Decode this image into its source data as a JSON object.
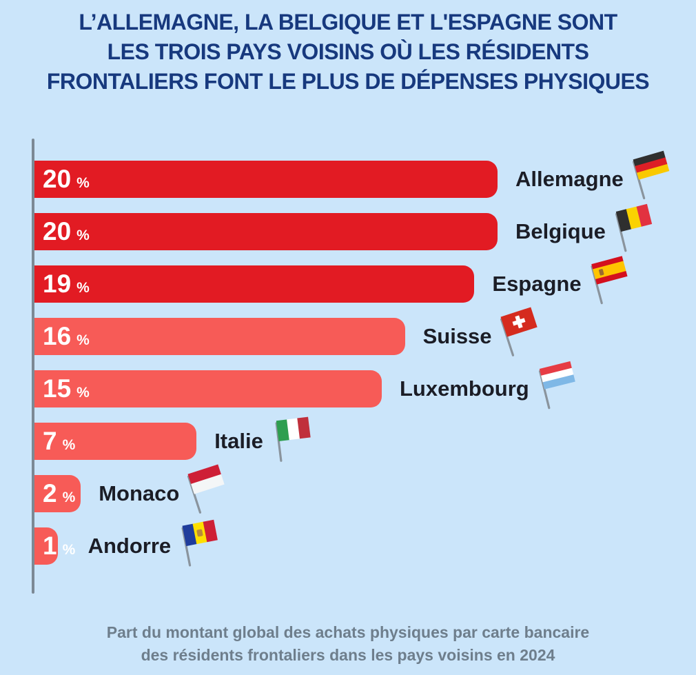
{
  "title": {
    "lines": [
      "L’ALLEMAGNE, LA BELGIQUE ET L'ESPAGNE SONT",
      "LES TROIS PAYS VOISINS OÙ LES RÉSIDENTS",
      "FRONTALIERS FONT LE PLUS DE DÉPENSES PHYSIQUES"
    ]
  },
  "footer": {
    "lines": [
      "Part du montant global des achats physiques par carte bancaire",
      "des résidents frontaliers dans les pays voisins en 2024"
    ]
  },
  "style": {
    "background": "#CBE5FA",
    "title_color": "#17397E",
    "strong_bar_color": "#E21B23",
    "light_bar_color": "#F75B57",
    "value_text_color": "#FFFFFF",
    "label_color": "#1B1D26",
    "axis_color": "#7C8995",
    "footer_color": "#6E7E8C",
    "pole_color": "#8A949D"
  },
  "chart_data": {
    "type": "bar",
    "orientation": "horizontal",
    "title": "L’Allemagne, la Belgique et l'Espagne sont les trois pays voisins où les résidents frontaliers font le plus de dépenses physiques",
    "caption": "Part du montant global des achats physiques par carte bancaire des résidents frontaliers dans les pays voisins en 2024",
    "xlabel": "",
    "ylabel": "",
    "xlim": [
      0,
      20
    ],
    "grid": false,
    "legend": false,
    "value_suffix": "%",
    "categories": [
      "Allemagne",
      "Belgique",
      "Espagne",
      "Suisse",
      "Luxembourg",
      "Italie",
      "Monaco",
      "Andorre"
    ],
    "values": [
      20,
      20,
      19,
      16,
      15,
      7,
      2,
      1
    ],
    "bars": [
      {
        "country": "Allemagne",
        "value": 20,
        "color": "#E21B23",
        "flag": {
          "icon": "germany-flag-icon",
          "orientation": "h",
          "stripes": [
            "#2F2F2F",
            "#DD1F26",
            "#F9C900"
          ],
          "ratios": [
            1,
            1,
            1
          ],
          "angle": -16,
          "emblem": "none"
        }
      },
      {
        "country": "Belgique",
        "value": 20,
        "color": "#E21B23",
        "flag": {
          "icon": "belgium-flag-icon",
          "orientation": "v",
          "stripes": [
            "#2F2F2F",
            "#FAD201",
            "#E23240"
          ],
          "ratios": [
            1,
            1,
            1
          ],
          "angle": -14,
          "emblem": "none"
        }
      },
      {
        "country": "Espagne",
        "value": 19,
        "color": "#E21B23",
        "flag": {
          "icon": "spain-flag-icon",
          "orientation": "h",
          "stripes": [
            "#D4101E",
            "#FFC400",
            "#D4101E"
          ],
          "ratios": [
            1,
            2,
            1
          ],
          "angle": -15,
          "emblem": "shield",
          "emblem_color": "#9A6A2F"
        }
      },
      {
        "country": "Suisse",
        "value": 16,
        "color": "#F75B57",
        "flag": {
          "icon": "switzerland-flag-icon",
          "orientation": "h",
          "stripes": [
            "#D52B1E"
          ],
          "ratios": [
            1
          ],
          "angle": -18,
          "emblem": "cross",
          "emblem_color": "#FFFFFF"
        }
      },
      {
        "country": "Luxembourg",
        "value": 15,
        "color": "#F75B57",
        "flag": {
          "icon": "luxembourg-flag-icon",
          "orientation": "h",
          "stripes": [
            "#E63C44",
            "#FFFFFF",
            "#7FB8E6"
          ],
          "ratios": [
            1,
            1,
            1
          ],
          "angle": -14,
          "emblem": "none"
        }
      },
      {
        "country": "Italie",
        "value": 7,
        "color": "#F75B57",
        "flag": {
          "icon": "italy-flag-icon",
          "orientation": "v",
          "stripes": [
            "#2E9E4F",
            "#FFFFFF",
            "#C0303C"
          ],
          "ratios": [
            1,
            1,
            1
          ],
          "angle": -7,
          "emblem": "none"
        }
      },
      {
        "country": "Monaco",
        "value": 2,
        "color": "#F75B57",
        "flag": {
          "icon": "monaco-flag-icon",
          "orientation": "h",
          "stripes": [
            "#CE1F36",
            "#F4F6F7"
          ],
          "ratios": [
            1,
            1
          ],
          "angle": -18,
          "emblem": "none"
        }
      },
      {
        "country": "Andorre",
        "value": 1,
        "color": "#F75B57",
        "flag": {
          "icon": "andorra-flag-icon",
          "orientation": "v",
          "stripes": [
            "#1F3D9C",
            "#FEDF00",
            "#CE2036"
          ],
          "ratios": [
            1,
            1,
            1
          ],
          "angle": -11,
          "emblem": "crest",
          "emblem_color": "#B98A3A"
        }
      }
    ]
  }
}
